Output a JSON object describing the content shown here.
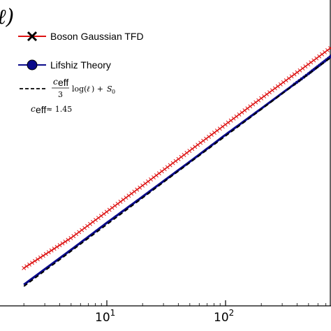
{
  "chart_data": {
    "type": "line",
    "x_scale": "log",
    "xlim": [
      2,
      1000
    ],
    "ylim": [
      0.4,
      3.5
    ],
    "x_ticks": [
      {
        "base": "10",
        "exp": "1",
        "value": 10
      },
      {
        "base": "10",
        "exp": "2",
        "value": 100
      }
    ],
    "ylabel_fragment": "ℓ)",
    "legend_placement": "top-left",
    "series": [
      {
        "name": "Boson Gaussian TFD",
        "color": "#dd1111",
        "marker": "x",
        "x": [
          2,
          5,
          10,
          20,
          50,
          100,
          200,
          500,
          1000
        ],
        "y": [
          0.8,
          1.18,
          1.51,
          1.84,
          2.28,
          2.61,
          2.94,
          3.37,
          3.7
        ]
      },
      {
        "name": "Lifshiz Theory",
        "color": "#0a0a8a",
        "marker": "o",
        "x": [
          2,
          5,
          10,
          20,
          50,
          100,
          200,
          500,
          1000
        ],
        "y": [
          0.59,
          1.03,
          1.37,
          1.7,
          2.14,
          2.48,
          2.81,
          3.25,
          3.6
        ]
      },
      {
        "name": "c_eff/3 log(ℓ) + S_0",
        "color": "#000000",
        "style": "dashed",
        "x": [
          2,
          1000
        ],
        "y": [
          0.57,
          3.58
        ]
      }
    ],
    "legend": [
      {
        "label": "Boson Gaussian TFD",
        "series": 0
      },
      {
        "label": "Lifshiz Theory",
        "series": 1
      },
      {
        "label_parts": {
          "c": "c",
          "eff": "eff",
          "three": "3",
          "log": "log(",
          "ell": "ℓ",
          "close": ") + ",
          "S": "S",
          "zero": "0"
        },
        "series": 2
      },
      {
        "annotation": {
          "c": "c",
          "eff": "eff",
          "approx": " ≈ 1.45"
        }
      }
    ]
  }
}
